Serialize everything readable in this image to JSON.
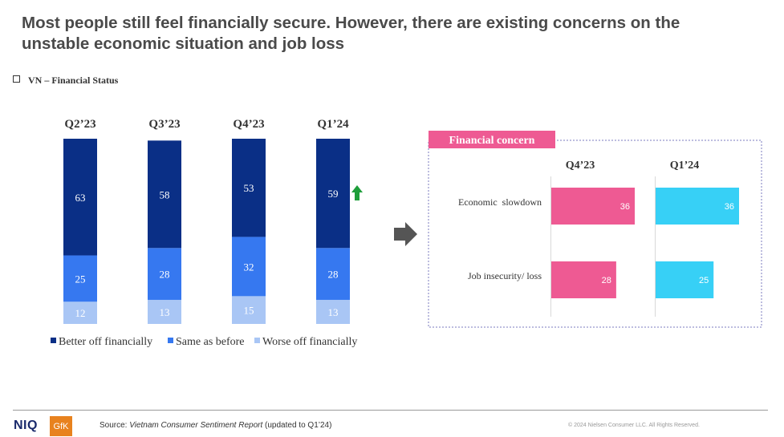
{
  "title": "Most people still feel financially secure. However, there are existing concerns on the unstable economic situation and job loss",
  "subtitle": "VN – Financial Status",
  "chart_data": [
    {
      "type": "bar",
      "stacked": true,
      "categories": [
        "Q2’23",
        "Q3’23",
        "Q4’23",
        "Q1’24"
      ],
      "series": [
        {
          "name": "Better off financially",
          "values": [
            63,
            58,
            53,
            59
          ],
          "color": "#0a2f86"
        },
        {
          "name": "Same as before",
          "values": [
            25,
            28,
            32,
            28
          ],
          "color": "#3678f0"
        },
        {
          "name": "Worse off financially",
          "values": [
            12,
            13,
            15,
            13
          ],
          "color": "#a9c6f5"
        }
      ],
      "legend": "bottom",
      "annotation": {
        "category": "Q1’24",
        "icon": "up-arrow-icon",
        "color": "#1e9e3a"
      }
    },
    {
      "type": "bar",
      "orientation": "horizontal",
      "title": "Financial concern",
      "title_color": "#ee5a93",
      "categories": [
        "Economic  slowdown",
        "Job insecurity/ loss"
      ],
      "series": [
        {
          "name": "Q4’23",
          "values": [
            36,
            28
          ],
          "color": "#ee5a93"
        },
        {
          "name": "Q1’24",
          "values": [
            36,
            25
          ],
          "color": "#37d0f6"
        }
      ]
    }
  ],
  "arrow_icon": "right-arrow-icon",
  "footer": {
    "brand": "NIQ",
    "partner": "GfK",
    "source_prefix": "Source: ",
    "source_report": "Vietnam Consumer Sentiment Report",
    "source_suffix": " (updated to Q1’24)",
    "copyright": "© 2024 Nielsen Consumer LLC. All Rights Reserved."
  }
}
